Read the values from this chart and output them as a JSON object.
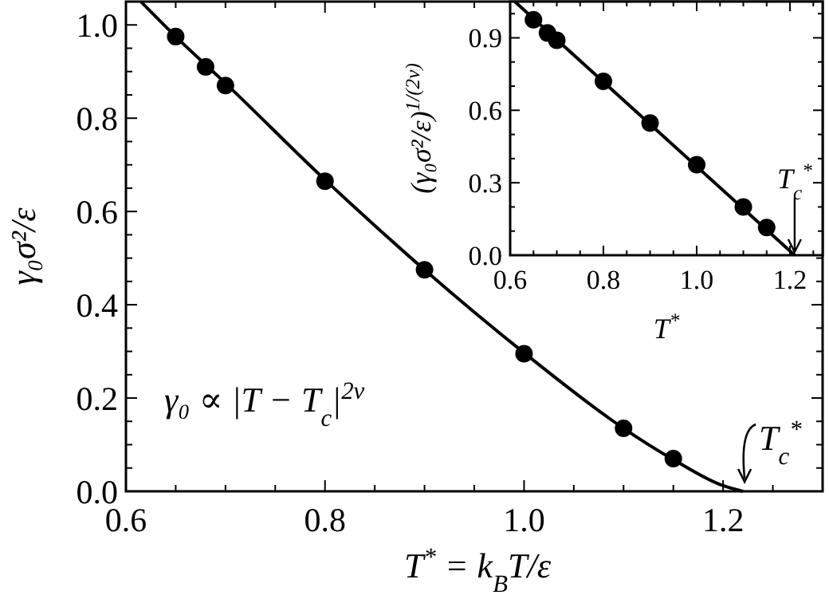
{
  "chart_data": [
    {
      "type": "scatter",
      "xlabel": "T$^{*}$ = k$_{B}$T/ε",
      "ylabel": "γ₀σ²/ε",
      "xlim": [
        0.6,
        1.3
      ],
      "ylim": [
        0,
        1.05
      ],
      "xticks": [
        {
          "value": 0.6,
          "label": "0.6"
        },
        {
          "value": 0.65,
          "label": null
        },
        {
          "value": 0.7,
          "label": null
        },
        {
          "value": 0.75,
          "label": null
        },
        {
          "value": 0.8,
          "label": "0.8"
        },
        {
          "value": 0.85,
          "label": null
        },
        {
          "value": 0.9,
          "label": null
        },
        {
          "value": 0.95,
          "label": null
        },
        {
          "value": 1.0,
          "label": "1.0"
        },
        {
          "value": 1.05,
          "label": null
        },
        {
          "value": 1.1,
          "label": null
        },
        {
          "value": 1.15,
          "label": null
        },
        {
          "value": 1.2,
          "label": "1.2"
        },
        {
          "value": 1.25,
          "label": null
        },
        {
          "value": 1.3,
          "label": null
        }
      ],
      "yticks": [
        {
          "value": 0,
          "label": "0.0"
        },
        {
          "value": 0.05,
          "label": null
        },
        {
          "value": 0.1,
          "label": null
        },
        {
          "value": 0.15,
          "label": null
        },
        {
          "value": 0.2,
          "label": "0.2"
        },
        {
          "value": 0.25,
          "label": null
        },
        {
          "value": 0.3,
          "label": null
        },
        {
          "value": 0.35,
          "label": null
        },
        {
          "value": 0.4,
          "label": "0.4"
        },
        {
          "value": 0.45,
          "label": null
        },
        {
          "value": 0.5,
          "label": null
        },
        {
          "value": 0.55,
          "label": null
        },
        {
          "value": 0.6,
          "label": "0.6"
        },
        {
          "value": 0.65,
          "label": null
        },
        {
          "value": 0.7,
          "label": null
        },
        {
          "value": 0.75,
          "label": null
        },
        {
          "value": 0.8,
          "label": "0.8"
        },
        {
          "value": 0.85,
          "label": null
        },
        {
          "value": 0.9,
          "label": null
        },
        {
          "value": 0.95,
          "label": null
        },
        {
          "value": 1.0,
          "label": "1.0"
        }
      ],
      "series": [
        {
          "type": "line",
          "color": "#000000",
          "x": [
            0.615,
            0.65,
            0.7,
            0.8,
            0.9,
            1.0,
            1.1,
            1.15,
            1.2,
            1.22
          ],
          "values": [
            1.05,
            0.975,
            0.875,
            0.668,
            0.475,
            0.297,
            0.135,
            0.068,
            0.012,
            0
          ]
        },
        {
          "marker": "circle",
          "color": "#000000",
          "x": [
            0.65,
            0.68,
            0.7,
            0.8,
            0.9,
            1.0,
            1.1,
            1.15
          ],
          "values": [
            0.975,
            0.91,
            0.87,
            0.665,
            0.475,
            0.295,
            0.135,
            0.07
          ]
        }
      ],
      "annotations": [
        "γ₀ ∝ |T − T$_{c}$|$^{2ν}$",
        {
          "text": "T$_{c}$$^{*}$",
          "x": 1.22,
          "y": 0
        }
      ]
    },
    {
      "type": "scatter",
      "xlabel": "T$^{*}$",
      "ylabel": "(γ₀σ²/ε)$^{1/(2ν)}$",
      "xlim": [
        0.6,
        1.27
      ],
      "ylim": [
        0,
        1.05
      ],
      "xticks": [
        {
          "value": 0.6,
          "label": "0.6"
        },
        {
          "value": 0.65,
          "label": null
        },
        {
          "value": 0.7,
          "label": null
        },
        {
          "value": 0.75,
          "label": null
        },
        {
          "value": 0.8,
          "label": "0.8"
        },
        {
          "value": 0.85,
          "label": null
        },
        {
          "value": 0.9,
          "label": null
        },
        {
          "value": 0.95,
          "label": null
        },
        {
          "value": 1.0,
          "label": "1.0"
        },
        {
          "value": 1.05,
          "label": null
        },
        {
          "value": 1.1,
          "label": null
        },
        {
          "value": 1.15,
          "label": null
        },
        {
          "value": 1.2,
          "label": "1.2"
        },
        {
          "value": 1.25,
          "label": null
        }
      ],
      "yticks": [
        {
          "value": 0,
          "label": "0.0"
        },
        {
          "value": 0.1,
          "label": null
        },
        {
          "value": 0.2,
          "label": null
        },
        {
          "value": 0.3,
          "label": "0.3"
        },
        {
          "value": 0.4,
          "label": null
        },
        {
          "value": 0.5,
          "label": null
        },
        {
          "value": 0.6,
          "label": "0.6"
        },
        {
          "value": 0.7,
          "label": null
        },
        {
          "value": 0.8,
          "label": null
        },
        {
          "value": 0.9,
          "label": "0.9"
        },
        {
          "value": 1.0,
          "label": null
        }
      ],
      "series": [
        {
          "type": "line",
          "color": "#000000",
          "x": [
            0.61,
            1.21
          ],
          "values": [
            1.05,
            0
          ]
        },
        {
          "marker": "circle",
          "color": "#000000",
          "x": [
            0.65,
            0.68,
            0.7,
            0.8,
            0.9,
            1.0,
            1.1,
            1.15
          ],
          "values": [
            0.975,
            0.92,
            0.89,
            0.72,
            0.547,
            0.375,
            0.2,
            0.115
          ]
        }
      ],
      "annotations": [
        {
          "text": "T$_{c}$$^{*}$",
          "x": 1.21,
          "y": 0
        }
      ]
    }
  ]
}
